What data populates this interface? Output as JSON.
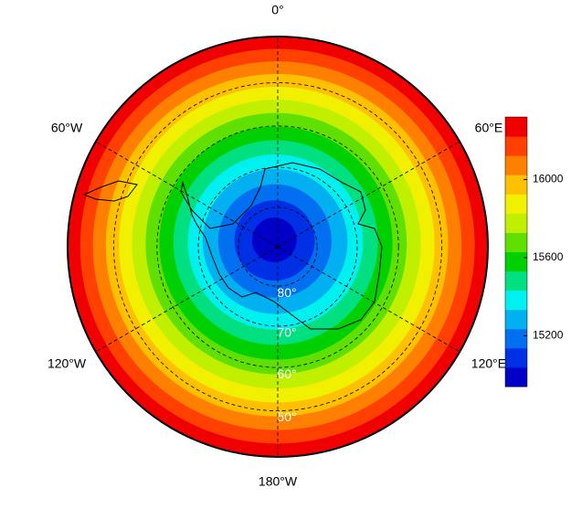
{
  "map": {
    "projection": "south-polar-stereographic",
    "lat_lim": [
      -90,
      -40
    ],
    "lon_ticks": [
      {
        "value": 0,
        "label": "0°"
      },
      {
        "value": 60,
        "label": "60°E"
      },
      {
        "value": 120,
        "label": "120°E"
      },
      {
        "value": 180,
        "label": "180°W"
      },
      {
        "value": -120,
        "label": "120°W"
      },
      {
        "value": -60,
        "label": "60°W"
      }
    ],
    "lat_ticks": [
      {
        "value": -80,
        "label": "80°"
      },
      {
        "value": -70,
        "label": "70°"
      },
      {
        "value": -60,
        "label": "60°"
      },
      {
        "value": -50,
        "label": "50°"
      }
    ]
  },
  "colorbar": {
    "lim": [
      14940,
      16320
    ],
    "ticks": [
      15200,
      15600,
      16000
    ],
    "colors": [
      "#0000c8",
      "#0030e6",
      "#0070f0",
      "#00b0f0",
      "#00f0f0",
      "#00e080",
      "#00d000",
      "#60e000",
      "#c0f000",
      "#f0f000",
      "#ffc000",
      "#ff8000",
      "#ff4000",
      "#f00000"
    ]
  }
}
